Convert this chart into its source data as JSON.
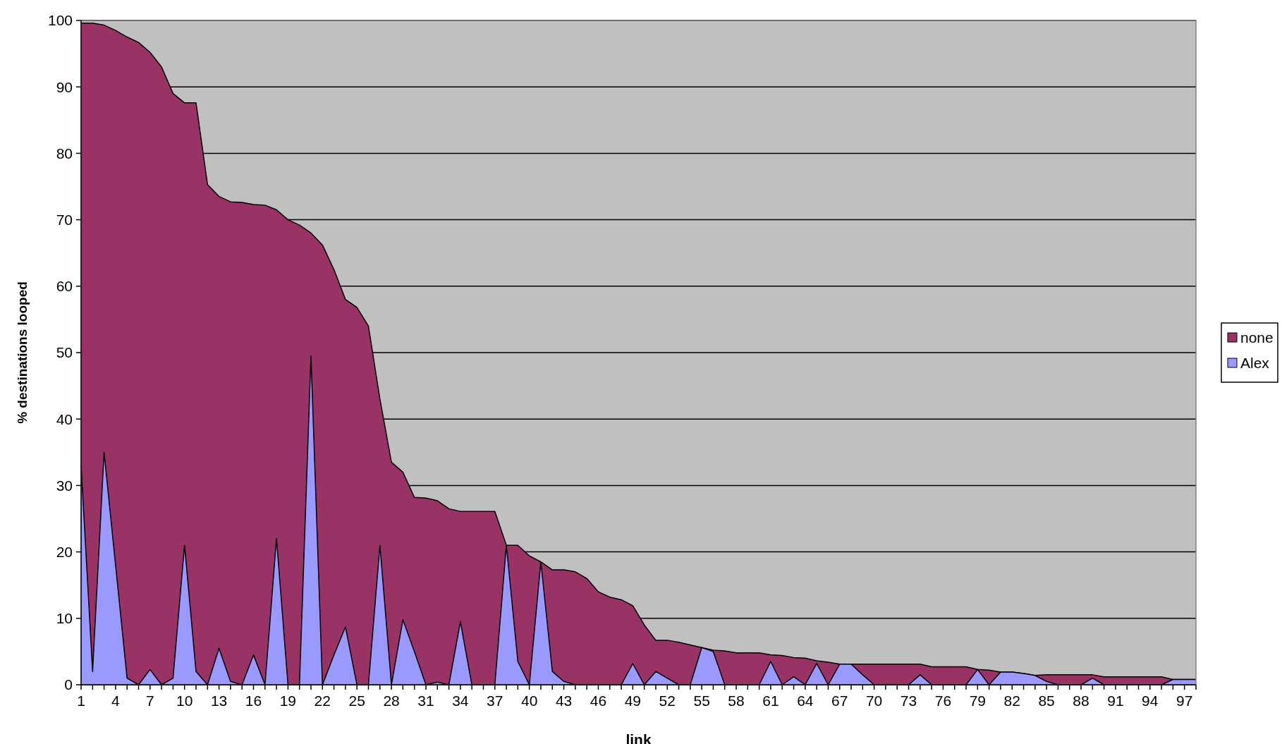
{
  "chart_data": {
    "type": "area",
    "xlabel": "link",
    "ylabel": "% destinations looped",
    "categories": [
      "1",
      null,
      null,
      "4",
      null,
      null,
      "7",
      null,
      null,
      "10",
      null,
      null,
      "13",
      null,
      null,
      "16",
      null,
      null,
      "19",
      null,
      null,
      "22",
      null,
      null,
      "25",
      null,
      null,
      "28",
      null,
      null,
      "31",
      null,
      null,
      "34",
      null,
      null,
      "37",
      null,
      null,
      "40",
      null,
      null,
      "43",
      null,
      null,
      "46",
      null,
      null,
      "49",
      null,
      null,
      "52",
      null,
      null,
      "55",
      null,
      null,
      "58",
      null,
      null,
      "61",
      null,
      null,
      "64",
      null,
      null,
      "67",
      null,
      null,
      "70",
      null,
      null,
      "73",
      null,
      null,
      "76",
      null,
      null,
      "79",
      null,
      null,
      "82",
      null,
      null,
      "85",
      null,
      null,
      "88",
      null,
      null,
      "91",
      null,
      null,
      "94",
      null,
      null,
      "97",
      null
    ],
    "series": [
      {
        "name": "none",
        "color": "#993366",
        "values": [
          99.6,
          99.6,
          99.3,
          98.5,
          97.5,
          96.7,
          95.2,
          93,
          89,
          87.6,
          87.6,
          75.3,
          73.5,
          72.7,
          72.6,
          72.3,
          72.2,
          71.5,
          70,
          69.2,
          68,
          66.2,
          62.5,
          58,
          56.8,
          54,
          43,
          33.5,
          32,
          28.2,
          28.1,
          27.7,
          26.5,
          26.1,
          26.1,
          26.1,
          26.1,
          21,
          21,
          19.4,
          18.5,
          17.3,
          17.3,
          17,
          16,
          14,
          13.2,
          12.8,
          11.9,
          9,
          6.7,
          6.7,
          6.4,
          6,
          5.6,
          5.2,
          5.1,
          4.8,
          4.8,
          4.8,
          4.5,
          4.4,
          4.1,
          4,
          3.6,
          3.4,
          3.1,
          3.1,
          3.1,
          3.1,
          3.1,
          3.1,
          3.1,
          3.1,
          2.7,
          2.7,
          2.7,
          2.7,
          2.3,
          2.2,
          1.9,
          1.9,
          1.7,
          1.4,
          1.5,
          1.5,
          1.5,
          1.5,
          1.5,
          1.2,
          1.2,
          1.2,
          1.2,
          1.2,
          1.2,
          0.8,
          0.8,
          0.8
        ]
      },
      {
        "name": "Alex",
        "color": "#9999ff",
        "values": [
          33,
          2,
          35,
          18,
          1,
          0,
          2.3,
          0,
          1,
          21,
          2,
          0,
          5.5,
          0.5,
          0,
          4.5,
          0,
          22,
          0,
          0,
          49.5,
          0,
          4.5,
          8.7,
          0,
          0,
          21,
          0,
          9.8,
          5,
          0,
          0.4,
          0,
          9.5,
          0,
          0,
          0,
          21,
          3.5,
          0,
          18.5,
          2,
          0.5,
          0,
          0,
          0,
          0,
          0,
          3.2,
          0,
          2,
          1,
          0,
          0,
          5.6,
          5,
          0,
          0,
          0,
          0,
          3.5,
          0,
          1.2,
          0,
          3.2,
          0,
          3.1,
          3.1,
          1.5,
          0,
          0,
          0,
          0,
          1.5,
          0,
          0,
          0,
          0,
          2.3,
          0,
          1.9,
          1.9,
          1.7,
          1.4,
          0.5,
          0,
          0,
          0,
          1,
          0,
          0,
          0,
          0,
          0,
          0,
          0.8,
          0.8,
          0.8
        ]
      }
    ],
    "ylim": [
      0,
      100
    ],
    "yticks": [
      0,
      10,
      20,
      30,
      40,
      50,
      60,
      70,
      80,
      90,
      100
    ],
    "grid": "y",
    "legend": "right"
  }
}
